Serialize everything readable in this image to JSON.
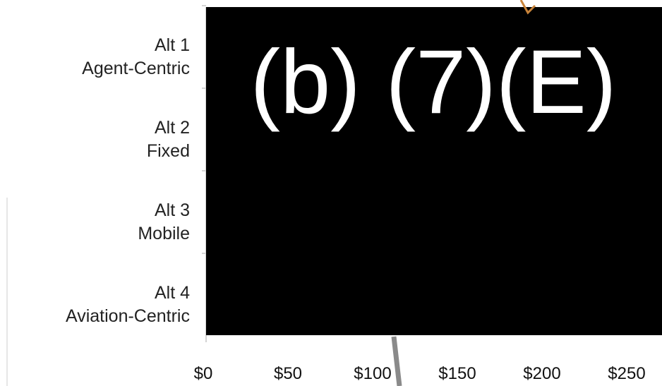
{
  "chart_data": {
    "type": "bar",
    "orientation": "horizontal",
    "categories": [
      [
        "Alt 1",
        "Agent-Centric"
      ],
      [
        "Alt 2",
        "Fixed"
      ],
      [
        "Alt 3",
        "Mobile"
      ],
      [
        "Alt 4",
        "Aviation-Centric"
      ]
    ],
    "x_ticks": [
      "$0",
      "$50",
      "$100",
      "$150",
      "$200",
      "$250"
    ],
    "xlim": [
      0,
      250
    ],
    "grid": false
  },
  "redaction": {
    "label": "(b) (7)(E)",
    "color": "#000000",
    "text_color": "#ffffff"
  }
}
